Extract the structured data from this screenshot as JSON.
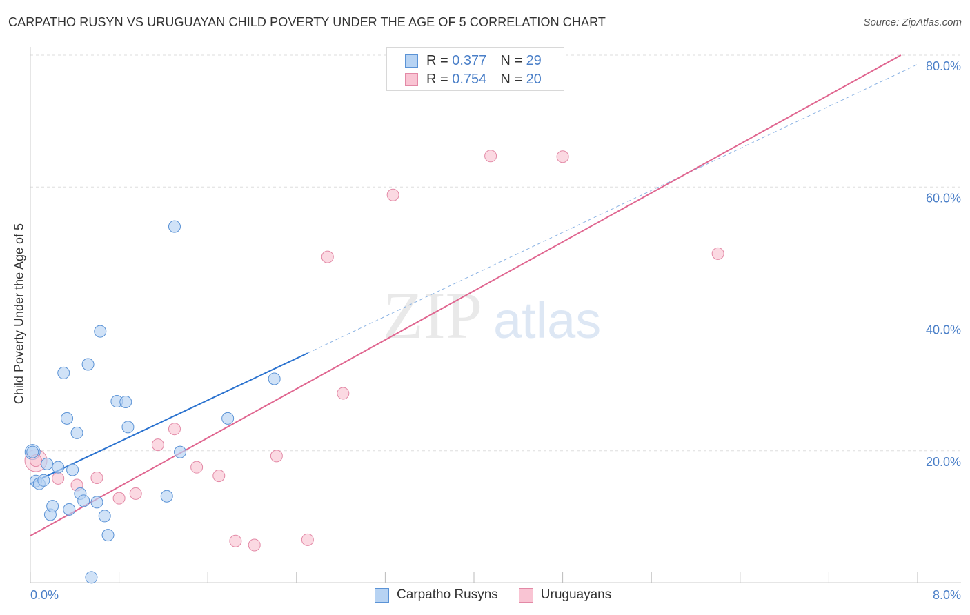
{
  "title": "CARPATHO RUSYN VS URUGUAYAN CHILD POVERTY UNDER THE AGE OF 5 CORRELATION CHART",
  "source": "Source: ZipAtlas.com",
  "watermark": {
    "zip": "ZIP",
    "atlas": "atlas"
  },
  "legend": {
    "rows": [
      {
        "r_label": "R =",
        "r_value": "0.377",
        "n_label": "N =",
        "n_value": "29"
      },
      {
        "r_label": "R =",
        "r_value": "0.754",
        "n_label": "N =",
        "n_value": "20"
      }
    ]
  },
  "bottom_legend": [
    "Carpatho Rusyns",
    "Uruguayans"
  ],
  "colors": {
    "blue_fill": "#b7d3f3",
    "blue_stroke": "#5b93d6",
    "blue_line": "#2a72cf",
    "pink_fill": "#f9c4d3",
    "pink_stroke": "#e389a6",
    "pink_line": "#e06690",
    "grid": "#dddddd",
    "axis_text": "#4a7fc8"
  },
  "chart_data": {
    "type": "scatter",
    "title": "CARPATHO RUSYN VS URUGUAYAN CHILD POVERTY UNDER THE AGE OF 5 CORRELATION CHART",
    "xlabel": "",
    "ylabel": "Child Poverty Under the Age of 5",
    "xlim": [
      0,
      8.0
    ],
    "ylim": [
      0,
      80.0
    ],
    "x_tick_labels": [
      "0.0%",
      "8.0%"
    ],
    "y_ticks": [
      20,
      40,
      60,
      80
    ],
    "y_tick_labels": [
      "20.0%",
      "40.0%",
      "60.0%",
      "80.0%"
    ],
    "series": [
      {
        "name": "Carpatho Rusyns",
        "r": 0.377,
        "n": 29,
        "points": [
          [
            0.02,
            19.8
          ],
          [
            0.05,
            15.4
          ],
          [
            0.08,
            15.0
          ],
          [
            0.12,
            15.5
          ],
          [
            0.15,
            18.0
          ],
          [
            0.18,
            10.3
          ],
          [
            0.2,
            11.6
          ],
          [
            0.25,
            17.5
          ],
          [
            0.3,
            31.8
          ],
          [
            0.33,
            24.9
          ],
          [
            0.35,
            11.1
          ],
          [
            0.38,
            17.1
          ],
          [
            0.42,
            22.7
          ],
          [
            0.45,
            13.5
          ],
          [
            0.48,
            12.4
          ],
          [
            0.52,
            33.1
          ],
          [
            0.55,
            0.8
          ],
          [
            0.6,
            12.2
          ],
          [
            0.63,
            38.1
          ],
          [
            0.67,
            10.1
          ],
          [
            0.7,
            7.2
          ],
          [
            0.78,
            27.5
          ],
          [
            0.86,
            27.4
          ],
          [
            0.88,
            23.6
          ],
          [
            1.23,
            13.1
          ],
          [
            1.3,
            54.0
          ],
          [
            1.35,
            19.8
          ],
          [
            1.78,
            24.9
          ],
          [
            2.2,
            30.9
          ]
        ],
        "trend": {
          "x": [
            0.0,
            2.5
          ],
          "y": [
            15.0,
            34.8
          ]
        },
        "trend_extension": {
          "x": [
            2.5,
            8.0
          ],
          "y": [
            34.8,
            78.6
          ]
        }
      },
      {
        "name": "Uruguayans",
        "r": 0.754,
        "n": 20,
        "points": [
          [
            0.05,
            18.5
          ],
          [
            0.25,
            15.8
          ],
          [
            0.42,
            14.8
          ],
          [
            0.6,
            15.9
          ],
          [
            0.8,
            12.8
          ],
          [
            0.95,
            13.5
          ],
          [
            1.15,
            20.9
          ],
          [
            1.3,
            23.3
          ],
          [
            1.5,
            17.5
          ],
          [
            1.7,
            16.2
          ],
          [
            1.85,
            6.3
          ],
          [
            2.02,
            5.7
          ],
          [
            2.22,
            19.2
          ],
          [
            2.5,
            6.5
          ],
          [
            2.68,
            49.4
          ],
          [
            2.82,
            28.7
          ],
          [
            3.27,
            58.8
          ],
          [
            4.15,
            64.7
          ],
          [
            4.8,
            64.6
          ],
          [
            6.2,
            49.9
          ]
        ],
        "trend": {
          "x": [
            0.0,
            7.85
          ],
          "y": [
            7.1,
            80.0
          ]
        }
      }
    ]
  }
}
